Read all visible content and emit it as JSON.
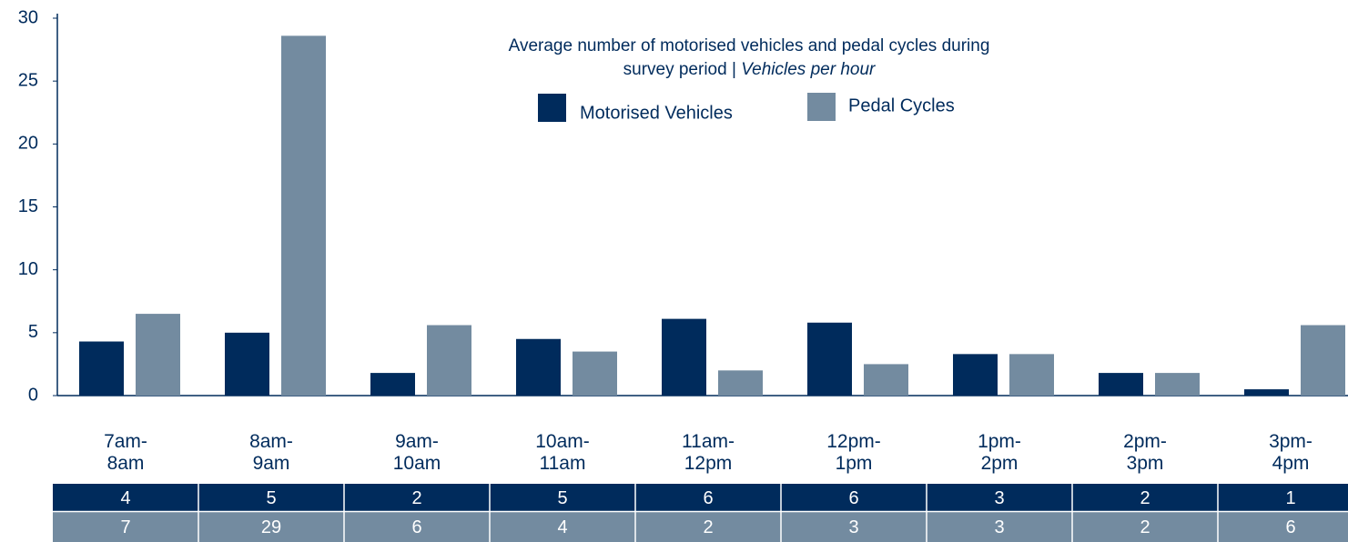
{
  "chart_data": {
    "type": "bar",
    "title": "Average number of motorised vehicles and pedal cycles during survey period |",
    "subtitle": "Vehicles per hour",
    "categories": [
      "7am-\n8am",
      "8am-\n9am",
      "9am-\n10am",
      "10am-\n11am",
      "11am-\n12pm",
      "12pm-\n1pm",
      "1pm-\n2pm",
      "2pm-\n3pm",
      "3pm-\n4pm"
    ],
    "series": [
      {
        "name": "Motorised Vehicles",
        "color": "#002b5c",
        "values": [
          4.3,
          5.0,
          1.8,
          4.5,
          6.1,
          5.8,
          3.3,
          1.8,
          0.5
        ],
        "value_labels": [
          "4",
          "5",
          "2",
          "5",
          "6",
          "6",
          "3",
          "2",
          "1"
        ]
      },
      {
        "name": "Pedal Cycles",
        "color": "#738ba0",
        "values": [
          6.5,
          28.6,
          5.6,
          3.5,
          2.0,
          2.5,
          3.3,
          1.8,
          5.6
        ],
        "value_labels": [
          "7",
          "29",
          "6",
          "4",
          "2",
          "3",
          "3",
          "2",
          "6"
        ]
      }
    ],
    "ylim": [
      0,
      30
    ],
    "yticks": [
      0,
      5,
      10,
      15,
      20,
      25,
      30
    ],
    "grid": false
  }
}
